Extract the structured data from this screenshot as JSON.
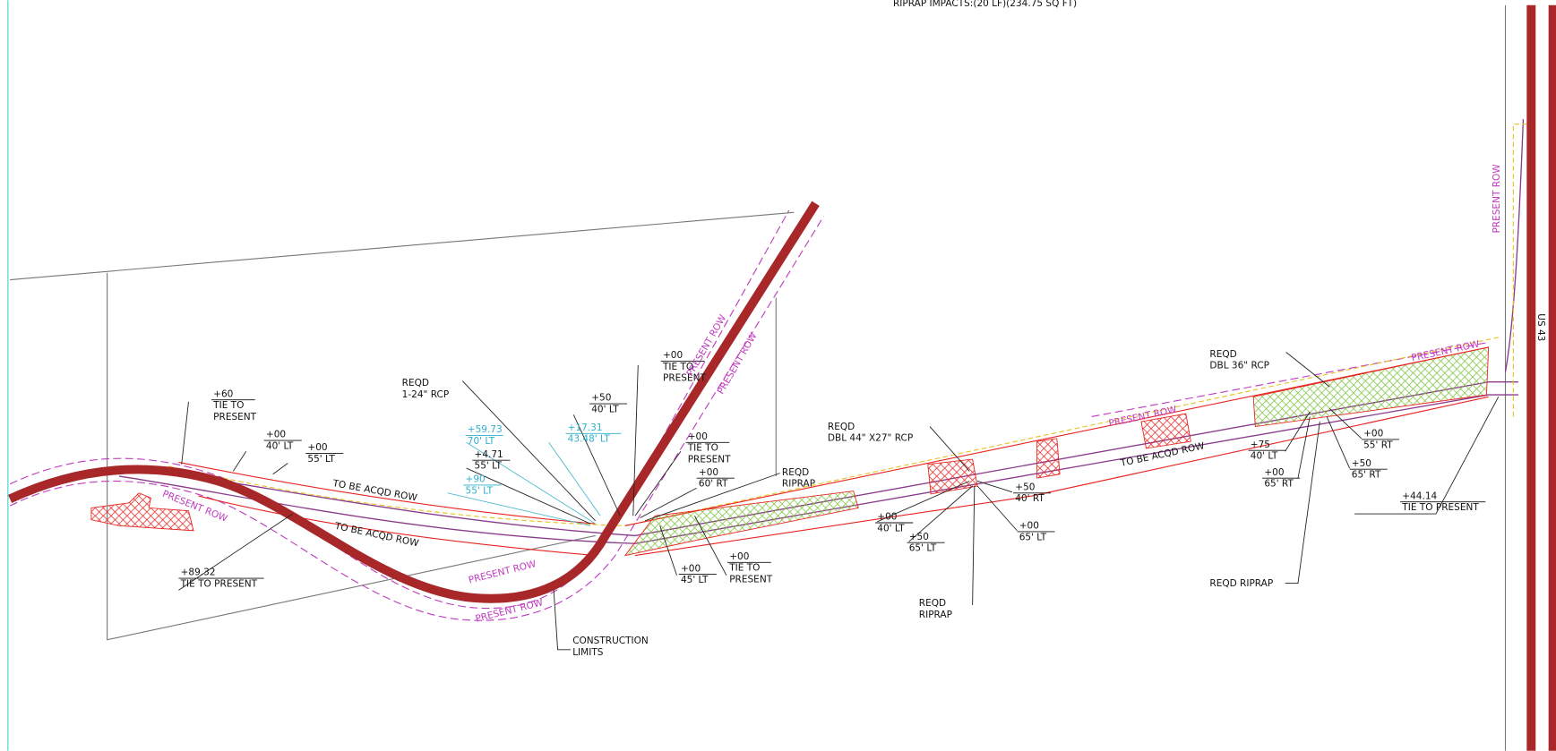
{
  "header": {
    "title": "RIPRAP IMPACTS:(20 LF)(234.75 SQ FT)"
  },
  "labels": [
    [
      "REQD",
      "1-24\" RCP"
    ],
    [
      "+60",
      "TIE TO",
      "PRESENT"
    ],
    [
      "+00",
      "40' LT"
    ],
    [
      "+00",
      "55' LT"
    ],
    [
      "TO BE ACQD ROW"
    ],
    [
      "PRESENT ROW"
    ],
    [
      "TO BE ACQD ROW"
    ],
    [
      "+89.32",
      "TIE TO PRESENT"
    ],
    [
      "+59.73",
      "70' LT"
    ],
    [
      "+17.31",
      "43.48' LT"
    ],
    [
      "+4.71",
      "55' LT"
    ],
    [
      "+90",
      "55' LT"
    ],
    [
      "+50",
      "40' LT"
    ],
    [
      "+00",
      "TIE TO",
      "PRESENT"
    ],
    [
      "PRESENT ROW"
    ],
    [
      "PRESENT ROW"
    ],
    [
      "+00",
      "TIE TO",
      "PRESENT"
    ],
    [
      "+00",
      "60' RT"
    ],
    [
      "REQD",
      "RIPRAP"
    ],
    [
      "+00",
      "45' LT"
    ],
    [
      "+00",
      "TIE TO",
      "PRESENT"
    ],
    [
      "PRESENT ROW"
    ],
    [
      "PRESENT ROW"
    ],
    [
      "CONSTRUCTION",
      "LIMITS"
    ],
    [
      "REQD",
      "DBL 44\" X27\" RCP"
    ],
    [
      "+00",
      "40' LT"
    ],
    [
      "+50",
      "65' LT"
    ],
    [
      "+50",
      "40' RT"
    ],
    [
      "+00",
      "65' LT"
    ],
    [
      "REQD",
      "RIPRAP"
    ],
    [
      "PRESENT ROW"
    ],
    [
      "TO BE ACQD ROW"
    ],
    [
      "REQD",
      "DBL 36\" RCP"
    ],
    [
      "PRESENT ROW"
    ],
    [
      "+75",
      "40' LT"
    ],
    [
      "+00",
      "65' RT"
    ],
    [
      "+00",
      "55' RT"
    ],
    [
      "+50",
      "65' RT"
    ],
    [
      "+44.14",
      "TIE TO PRESENT"
    ],
    [
      "REQD RIPRAP"
    ],
    [
      "PRESENT ROW"
    ],
    [
      "US 43"
    ]
  ]
}
